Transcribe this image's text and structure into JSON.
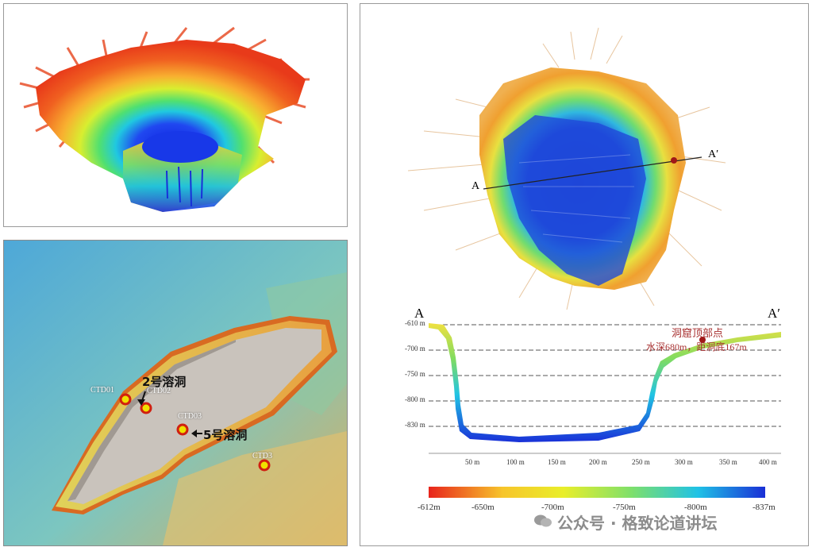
{
  "map": {
    "cave2_label": "2号溶洞",
    "cave5_label": "5号溶洞",
    "stations": [
      "CTD01",
      "CTD02",
      "CTD03",
      "CTD3"
    ]
  },
  "profile": {
    "start_label": "A",
    "end_label": "A′",
    "annotation_line1": "洞窟顶部点",
    "annotation_line2": "水深680m，距洞底167m",
    "depth_ticks": [
      "-610 m",
      "-700 m",
      "-750 m",
      "-800 m",
      "-830 m"
    ],
    "distance_ticks": [
      "50 m",
      "100 m",
      "150 m",
      "200 m",
      "250 m",
      "300 m",
      "350 m",
      "400 m"
    ]
  },
  "colorbar": {
    "ticks": [
      "-612m",
      "-650m",
      "-700m",
      "-750m",
      "-800m",
      "-837m"
    ],
    "colors": [
      "#e8241c",
      "#f7c52b",
      "#e9ee2a",
      "#7fe06a",
      "#1fc2e6",
      "#1a2fd6"
    ]
  },
  "watermark": {
    "text": "公众号 · 格致论道讲坛"
  }
}
